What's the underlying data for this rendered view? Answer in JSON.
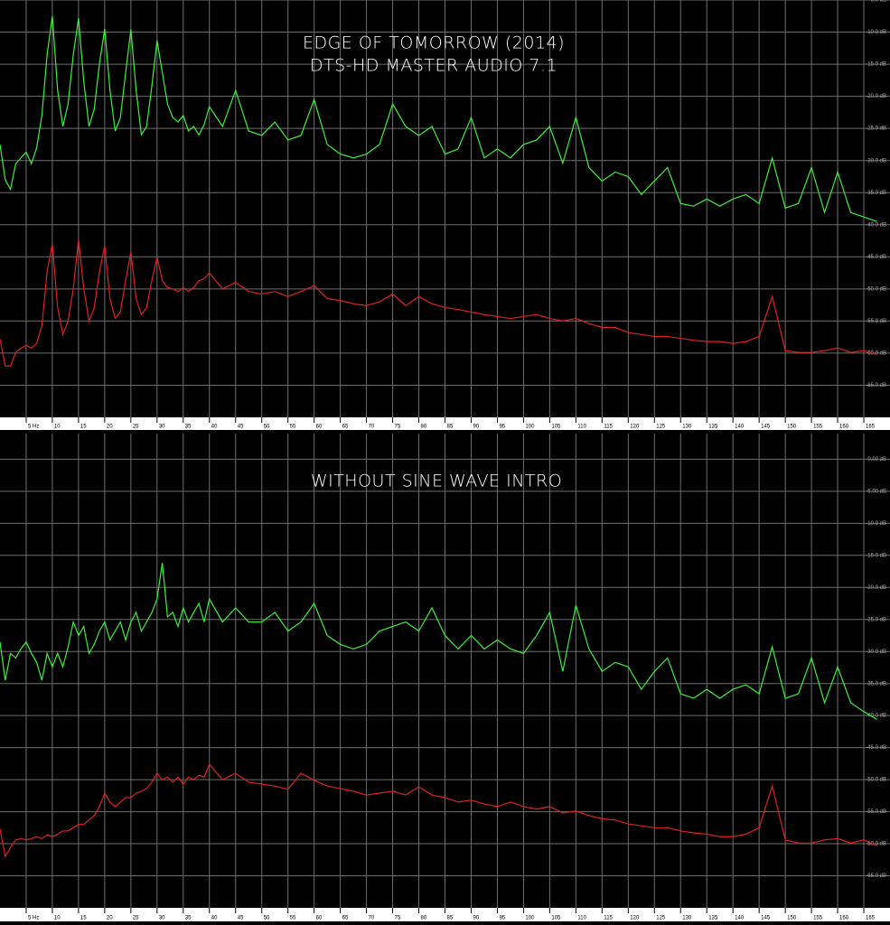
{
  "chart_data": [
    {
      "type": "line",
      "title": "EDGE OF TOMORROW (2014)",
      "subtitle": "DTS-HD MASTER AUDIO 7.1",
      "x": [
        0,
        1,
        2,
        3,
        4,
        5,
        6,
        7,
        8,
        9,
        10,
        11,
        12,
        13,
        14,
        15,
        16,
        17,
        18,
        19,
        20,
        21,
        22,
        23,
        24,
        25,
        26,
        27,
        28,
        29,
        30,
        31,
        32,
        33,
        34,
        35,
        36,
        37,
        38,
        39,
        40,
        42.5,
        45,
        47.5,
        50,
        52.5,
        55,
        57.5,
        60,
        62.5,
        65,
        67.5,
        70,
        72.5,
        75,
        77.5,
        80,
        82.5,
        85,
        87.5,
        90,
        92.5,
        95,
        97.5,
        100,
        102.5,
        105,
        107.5,
        110,
        112.5,
        115,
        117.5,
        120,
        122.5,
        125,
        127.5,
        130,
        132.5,
        135,
        137.5,
        140,
        142.5,
        145,
        147.5,
        150,
        152.5,
        155,
        157.5,
        160,
        162.5,
        165,
        167.5
      ],
      "xlim": [
        0,
        170
      ],
      "xticks": [
        {
          "value": 5,
          "label": "5 Hz"
        },
        10,
        15,
        20,
        25,
        30,
        35,
        40,
        45,
        50,
        55,
        60,
        65,
        70,
        75,
        80,
        85,
        90,
        95,
        100,
        105,
        110,
        115,
        120,
        125,
        130,
        135,
        140,
        145,
        150,
        155,
        160,
        165
      ],
      "ylim": [
        -70,
        -5
      ],
      "yticks": [
        {
          "value": -5,
          "label": "-5.0 dB"
        },
        {
          "value": -10,
          "label": "-10.0 dB"
        },
        {
          "value": -15,
          "label": "-15.0 dB"
        },
        {
          "value": -20,
          "label": "-20.0 dB"
        },
        {
          "value": -25,
          "label": "-25.0 dB"
        },
        {
          "value": -30,
          "label": "-30.0 dB"
        },
        {
          "value": -35,
          "label": "-35.0 dB"
        },
        {
          "value": -40,
          "label": "-40.0 dB"
        },
        {
          "value": -45,
          "label": "-45.0 dB"
        },
        {
          "value": -50,
          "label": "-50.0 dB"
        },
        {
          "value": -55,
          "label": "-55.0 dB"
        },
        {
          "value": -60,
          "label": "-60.0 dB"
        },
        {
          "value": -65,
          "label": "-65.0 dB"
        }
      ],
      "grid": true,
      "series": [
        {
          "color": "#3cf03c",
          "values": [
            -27.5,
            -33,
            -34.5,
            -30.5,
            -29.6,
            -28.7,
            -30.5,
            -28,
            -23,
            -13.5,
            -7.5,
            -19,
            -24.7,
            -21.2,
            -13.5,
            -7.8,
            -17.7,
            -24.7,
            -22,
            -14.9,
            -9.5,
            -19,
            -25.4,
            -23.3,
            -16.3,
            -9.6,
            -19,
            -26,
            -24.7,
            -18.4,
            -11.3,
            -16.3,
            -21.2,
            -23.3,
            -24,
            -23,
            -25.4,
            -24.7,
            -26,
            -24.4,
            -21.6,
            -24.7,
            -19.1,
            -25.4,
            -26.1,
            -24,
            -26.8,
            -26.1,
            -20.5,
            -27.5,
            -29,
            -29.6,
            -29,
            -27.5,
            -21.2,
            -24.7,
            -26.1,
            -24.7,
            -29,
            -28.2,
            -23.3,
            -29.6,
            -28.2,
            -29.6,
            -27.5,
            -26.8,
            -24.7,
            -30.4,
            -23.3,
            -31.1,
            -33.2,
            -31.8,
            -32.5,
            -35.3,
            -33.2,
            -31.1,
            -36.7,
            -37.1,
            -36,
            -37.1,
            -36,
            -35.3,
            -36.7,
            -29.6,
            -37.4,
            -36.7,
            -31.1,
            -38.1,
            -31.8,
            -38.1,
            -38.8,
            -39.5
          ]
        },
        {
          "color": "#e02020",
          "values": [
            -57.8,
            -62,
            -62,
            -59.9,
            -59.2,
            -58.8,
            -59.2,
            -58.5,
            -55.7,
            -47.3,
            -43,
            -52.9,
            -57.1,
            -55,
            -50,
            -42.3,
            -50,
            -55,
            -52.9,
            -47.3,
            -43.3,
            -51.5,
            -54.6,
            -53.6,
            -48.7,
            -44.2,
            -51.5,
            -54,
            -52.9,
            -48.7,
            -45.1,
            -48.7,
            -49.8,
            -50,
            -50.4,
            -49.8,
            -50.4,
            -49.8,
            -48.7,
            -48.4,
            -47.5,
            -50,
            -49,
            -50.4,
            -50.8,
            -50.4,
            -51.2,
            -50.4,
            -49.5,
            -51.5,
            -51.8,
            -52.3,
            -52.6,
            -52,
            -50.8,
            -52.6,
            -51.2,
            -52.3,
            -52.9,
            -53.2,
            -53.6,
            -54,
            -54.3,
            -54.6,
            -54.3,
            -54,
            -54.6,
            -55,
            -54.6,
            -55.4,
            -56,
            -56,
            -56.8,
            -57.1,
            -57.4,
            -57.4,
            -57.7,
            -58,
            -58.2,
            -58.2,
            -58.5,
            -58.2,
            -57.4,
            -51.2,
            -59.6,
            -59.9,
            -59.9,
            -59.6,
            -59.2,
            -59.9,
            -59.6,
            -60.2
          ]
        }
      ]
    },
    {
      "type": "line",
      "title": "WITHOUT SINE WAVE INTRO",
      "x": [
        0,
        1,
        2,
        3,
        4,
        5,
        6,
        7,
        8,
        9,
        10,
        11,
        12,
        13,
        14,
        15,
        16,
        17,
        18,
        19,
        20,
        21,
        22,
        23,
        24,
        25,
        26,
        27,
        28,
        29,
        30,
        31,
        32,
        33,
        34,
        35,
        36,
        37,
        38,
        39,
        40,
        42.5,
        45,
        47.5,
        50,
        52.5,
        55,
        57.5,
        60,
        62.5,
        65,
        67.5,
        70,
        72.5,
        75,
        77.5,
        80,
        82.5,
        85,
        87.5,
        90,
        92.5,
        95,
        97.5,
        100,
        102.5,
        105,
        107.5,
        110,
        112.5,
        115,
        117.5,
        120,
        122.5,
        125,
        127.5,
        130,
        132.5,
        135,
        137.5,
        140,
        142.5,
        145,
        147.5,
        150,
        152.5,
        155,
        157.5,
        160,
        162.5,
        165,
        167.5
      ],
      "xlim": [
        0,
        170
      ],
      "xticks": [
        {
          "value": 5,
          "label": "5 Hz"
        },
        10,
        15,
        20,
        25,
        30,
        35,
        40,
        45,
        50,
        55,
        60,
        65,
        70,
        75,
        80,
        85,
        90,
        95,
        100,
        105,
        110,
        115,
        120,
        125,
        130,
        135,
        140,
        145,
        150,
        155,
        160,
        165
      ],
      "ylim": [
        -70,
        4
      ],
      "yticks": [
        {
          "value": 0,
          "label": "0.00 dB"
        },
        {
          "value": -5,
          "label": "-5.00 dB"
        },
        {
          "value": -10,
          "label": "-10.0 dB"
        },
        {
          "value": -15,
          "label": "-15.0 dB"
        },
        {
          "value": -20,
          "label": "-20.0 dB"
        },
        {
          "value": -25,
          "label": "-25.0 dB"
        },
        {
          "value": -30,
          "label": "-30.0 dB"
        },
        {
          "value": -35,
          "label": "-35.0 dB"
        },
        {
          "value": -40,
          "label": "-40.0 dB"
        },
        {
          "value": -45,
          "label": "-45.0 dB"
        },
        {
          "value": -50,
          "label": "-50.0 dB"
        },
        {
          "value": -55,
          "label": "-55.0 dB"
        },
        {
          "value": -60,
          "label": "-60.0 dB"
        },
        {
          "value": -65,
          "label": "-65.0 dB"
        }
      ],
      "grid": true,
      "series": [
        {
          "color": "#3cf03c",
          "values": [
            -28.5,
            -34.5,
            -30.3,
            -31,
            -29.6,
            -28.5,
            -30.3,
            -31.7,
            -34.5,
            -30.3,
            -32.4,
            -30.3,
            -32.4,
            -29.3,
            -25.4,
            -27.5,
            -26.1,
            -30.3,
            -28.9,
            -26.8,
            -25.4,
            -28.2,
            -26.8,
            -25.4,
            -28.2,
            -25.4,
            -23.9,
            -26.8,
            -25.4,
            -23.9,
            -21.8,
            -16.2,
            -24.6,
            -23.9,
            -26.1,
            -23.2,
            -25.4,
            -23.9,
            -22.5,
            -25.4,
            -21.8,
            -25.4,
            -23.2,
            -25.4,
            -25.4,
            -23.9,
            -26.8,
            -25.4,
            -22.5,
            -27.5,
            -28.9,
            -29.6,
            -28.9,
            -26.8,
            -26.1,
            -25.4,
            -26.8,
            -23.2,
            -27.5,
            -29.6,
            -27.5,
            -29.6,
            -28.2,
            -29.6,
            -30.3,
            -27.5,
            -23.9,
            -33.1,
            -22.8,
            -29.6,
            -33.1,
            -31.7,
            -32.4,
            -35.9,
            -33.1,
            -31,
            -36.6,
            -37.3,
            -35.9,
            -37.3,
            -35.9,
            -35.2,
            -36.6,
            -29.3,
            -37.3,
            -36.6,
            -31,
            -38,
            -32.4,
            -38,
            -39.4,
            -40.6
          ]
        },
        {
          "color": "#e02020",
          "values": [
            -57.7,
            -62,
            -60.6,
            -59.4,
            -59.2,
            -59.4,
            -59.2,
            -58.9,
            -59.2,
            -58.6,
            -58.9,
            -58.5,
            -58,
            -58,
            -57.5,
            -57,
            -57,
            -56.3,
            -55.6,
            -54.2,
            -52.1,
            -53.5,
            -54.2,
            -53.5,
            -52.8,
            -52.8,
            -52.1,
            -51.8,
            -51.4,
            -50.4,
            -49,
            -50,
            -49.6,
            -50.4,
            -49.6,
            -50.7,
            -49.6,
            -50,
            -49.3,
            -49.6,
            -47.6,
            -50,
            -49,
            -50.4,
            -50.7,
            -51,
            -51.5,
            -49,
            -50.1,
            -51,
            -51.4,
            -51.8,
            -52.4,
            -52.1,
            -51.8,
            -52.4,
            -51.1,
            -52.4,
            -52.8,
            -53.5,
            -53.2,
            -53.8,
            -54.2,
            -53.5,
            -54.2,
            -54.6,
            -54.2,
            -55.2,
            -54.9,
            -55.6,
            -56.1,
            -56.3,
            -56.9,
            -57.2,
            -57.5,
            -57.5,
            -58,
            -58.3,
            -58.5,
            -58.9,
            -58.9,
            -58.5,
            -57.5,
            -51,
            -59.4,
            -59.9,
            -59.9,
            -59.4,
            -59.2,
            -59.9,
            -59.4,
            -60.3
          ]
        }
      ]
    }
  ]
}
